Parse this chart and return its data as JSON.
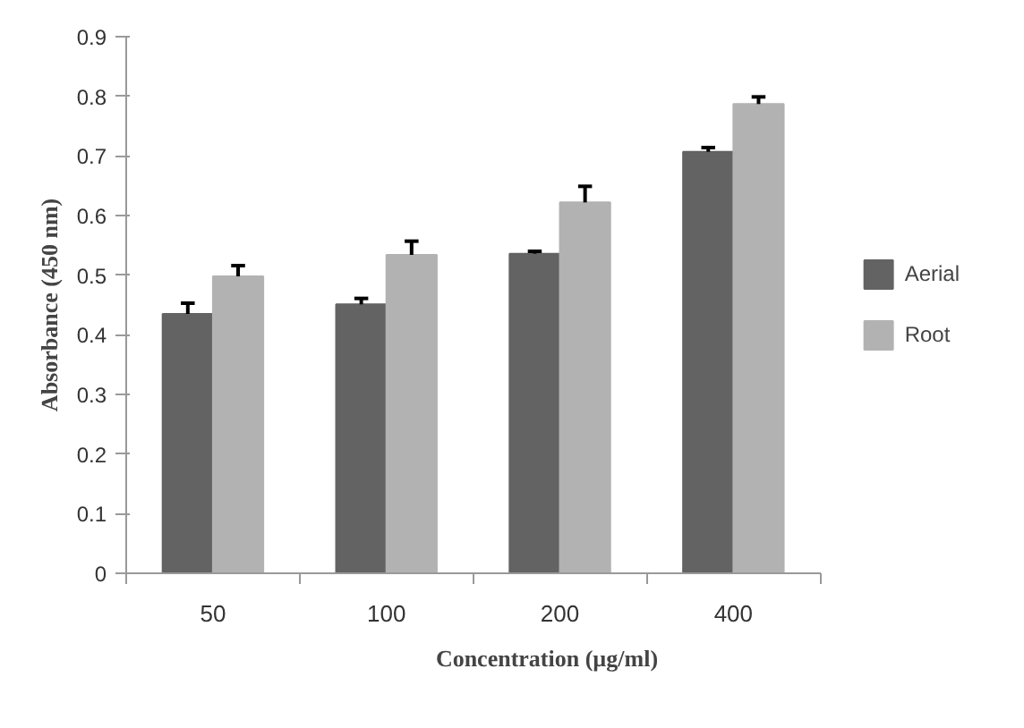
{
  "chart_data": {
    "type": "bar",
    "xlabel": "Concentration (µg/ml)",
    "ylabel": "Absorbance (450 nm)",
    "categories": [
      "50",
      "100",
      "200",
      "400"
    ],
    "series": [
      {
        "name": "Aerial",
        "color": "#636363",
        "values": [
          0.435,
          0.451,
          0.536,
          0.707
        ],
        "errors": [
          [
            0.435,
            0.453
          ],
          [
            0.451,
            0.461
          ],
          [
            0.536,
            0.54
          ],
          [
            0.707,
            0.714
          ]
        ]
      },
      {
        "name": "Root",
        "color": "#b2b2b2",
        "values": [
          0.498,
          0.534,
          0.622,
          0.787
        ],
        "errors": [
          [
            0.498,
            0.516
          ],
          [
            0.534,
            0.557
          ],
          [
            0.622,
            0.649
          ],
          [
            0.787,
            0.799
          ]
        ]
      }
    ],
    "ylim": [
      0,
      0.9
    ],
    "yticks": [
      0,
      0.1,
      0.2,
      0.3,
      0.4,
      0.5,
      0.6,
      0.7,
      0.8,
      0.9
    ],
    "grid": false,
    "legend": "right"
  }
}
